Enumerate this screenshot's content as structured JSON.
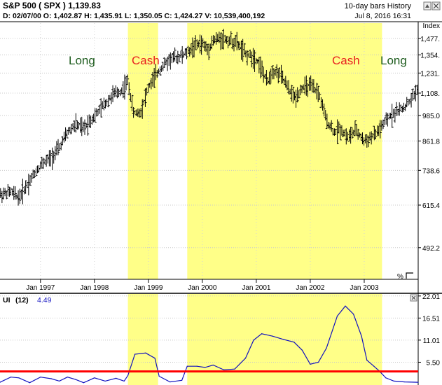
{
  "header": {
    "title": "S&P 500  ( SPX )   1,139.83",
    "bar_info": "10-day bars  History",
    "ohlc_line": "D: 02/07/00   O: 1,402.87   H: 1,435.91   L: 1,350.05   C: 1,424.27   V: 10,539,400,192",
    "timestamp": "Jul 8, 2016 16:31",
    "scale_label": "Index"
  },
  "annotations": {
    "long_1": "Long",
    "cash_1": "Cash",
    "cash_2": "Cash",
    "long_2": "Long"
  },
  "colors": {
    "long": "#1e5c1e",
    "cash": "#e82020",
    "highlight": "#ffff88",
    "price_bars": "#000000",
    "ui_line": "#1010c0",
    "threshold": "#ff0000"
  },
  "lower_panel": {
    "label": "UI",
    "period": "(12)",
    "value": "4.49",
    "threshold_value": 3.2
  },
  "chart_data": [
    {
      "type": "line",
      "title": "S&P 500 (SPX)",
      "ylabel": "Index",
      "ylim": [
        418.4,
        1600.0
      ],
      "yticks": [
        492.2,
        615.4,
        738.6,
        861.8,
        985.0,
        1108.0,
        1231.0,
        1354.0,
        1477.0
      ],
      "ytick_labels": [
        "492.2",
        "615.4",
        "738.6",
        "861.8",
        "985.0",
        "1,108.",
        "1,231.",
        "1,354.",
        "1,477."
      ],
      "xlim": [
        1996.25,
        2004.0
      ],
      "xticks": [
        1997.0,
        1998.0,
        1999.0,
        2000.0,
        2001.0,
        2002.0,
        2003.0
      ],
      "xtick_labels": [
        "Jan 1997",
        "Jan 1998",
        "Jan 1999",
        "Jan 2000",
        "Jan 2001",
        "Jan 2002",
        "Jan 2003"
      ],
      "cash_periods": [
        [
          1998.62,
          1999.18
        ],
        [
          1999.72,
          2003.33
        ]
      ],
      "series": [
        {
          "x": [
            1996.25,
            1996.45,
            1996.6,
            1996.8,
            1997.0,
            1997.2,
            1997.35,
            1997.5,
            1997.65,
            1997.8,
            1997.9,
            1998.0,
            1998.2,
            1998.35,
            1998.5,
            1998.62,
            1998.72,
            1998.85,
            1999.0,
            1999.18,
            1999.3,
            1999.42,
            1999.55,
            1999.72,
            1999.85,
            2000.0,
            2000.1,
            2000.2,
            2000.35,
            2000.5,
            2000.65,
            2000.8,
            2000.95,
            2001.05,
            2001.2,
            2001.3,
            2001.45,
            2001.6,
            2001.72,
            2001.85,
            2002.0,
            2002.15,
            2002.3,
            2002.45,
            2002.55,
            2002.7,
            2002.85,
            2003.0,
            2003.2,
            2003.33,
            2003.5,
            2003.7,
            2003.85,
            2004.0
          ],
          "values": [
            650,
            660,
            640,
            700,
            760,
            790,
            830,
            900,
            940,
            920,
            955,
            980,
            1050,
            1100,
            1120,
            1180,
            1000,
            1000,
            1140,
            1240,
            1290,
            1330,
            1340,
            1370,
            1420,
            1440,
            1390,
            1460,
            1480,
            1460,
            1440,
            1360,
            1340,
            1300,
            1170,
            1250,
            1220,
            1130,
            1080,
            1140,
            1150,
            1110,
            960,
            900,
            920,
            880,
            910,
            860,
            890,
            930,
            990,
            1020,
            1060,
            1140
          ]
        }
      ]
    },
    {
      "type": "line",
      "title": "UI (12)",
      "ylim": [
        0.0,
        22.5
      ],
      "yticks": [
        5.5,
        11.01,
        16.51,
        22.01
      ],
      "ytick_labels": [
        "5.50",
        "11.01",
        "16.51",
        "22.01"
      ],
      "xlim": [
        1996.25,
        2004.0
      ],
      "series": [
        {
          "x": [
            1996.25,
            1996.45,
            1996.6,
            1996.8,
            1997.0,
            1997.2,
            1997.35,
            1997.5,
            1997.65,
            1997.8,
            1998.0,
            1998.2,
            1998.4,
            1998.55,
            1998.62,
            1998.75,
            1998.95,
            1999.12,
            1999.2,
            1999.4,
            1999.62,
            1999.72,
            1999.9,
            2000.05,
            2000.2,
            2000.4,
            2000.6,
            2000.8,
            2000.95,
            2001.1,
            2001.3,
            2001.5,
            2001.7,
            2001.85,
            2002.0,
            2002.15,
            2002.3,
            2002.5,
            2002.65,
            2002.8,
            2002.95,
            2003.05,
            2003.18,
            2003.28,
            2003.4,
            2003.55,
            2003.75,
            2004.0
          ],
          "values": [
            0.5,
            1.8,
            1.6,
            0.4,
            1.8,
            1.4,
            0.8,
            1.8,
            1.2,
            0.4,
            1.6,
            0.8,
            1.5,
            0.8,
            2.2,
            7.5,
            7.8,
            6.5,
            2.0,
            0.6,
            1.0,
            4.5,
            4.5,
            4.2,
            4.8,
            3.6,
            3.8,
            6.5,
            11.0,
            12.6,
            12.0,
            11.2,
            10.5,
            8.5,
            5.0,
            5.5,
            9.0,
            17.0,
            19.5,
            17.5,
            12.0,
            6.0,
            4.5,
            3.3,
            1.6,
            0.8,
            0.6,
            0.5
          ]
        }
      ]
    }
  ]
}
